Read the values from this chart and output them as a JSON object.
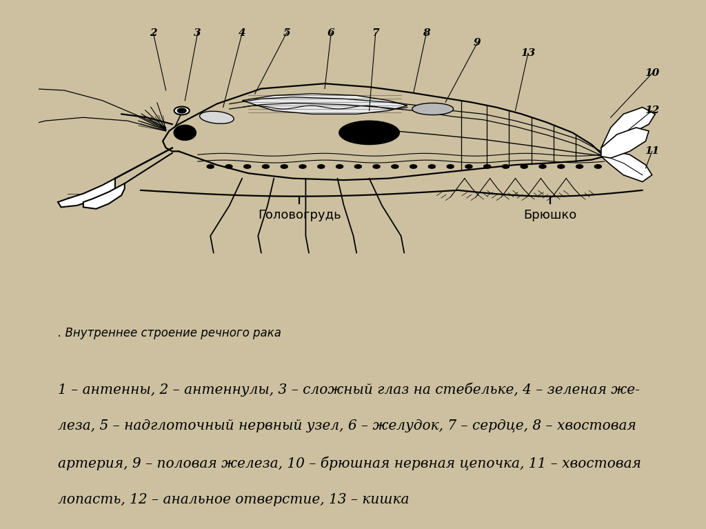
{
  "bg_outer": "#ccc0a0",
  "bg_diagram": "#ffffff",
  "bg_legend": "#ffffff",
  "title_caption": ". Внутреннее строение речного рака",
  "legend_line1": "1 – антенны, 2 – антеннулы, 3 – сложный глаз на стебельке, 4 – зеленая же-",
  "legend_line2": "леза, 5 – надглоточный нервный узел, 6 – желудок, 7 – сердце, 8 – хвостовая",
  "legend_line3": "артерия, 9 – половая железа, 10 – брюшная нервная цепочка, 11 – хвостовая",
  "legend_line4": "лопасть, 12 – анальное отверстие, 13 – кишка",
  "label_golovogrud": "Головогрудь",
  "label_bryushko": "Брюшко",
  "title_fontsize": 12,
  "legend_fontsize": 14.5,
  "label_fontsize": 13,
  "number_fontsize": 11
}
